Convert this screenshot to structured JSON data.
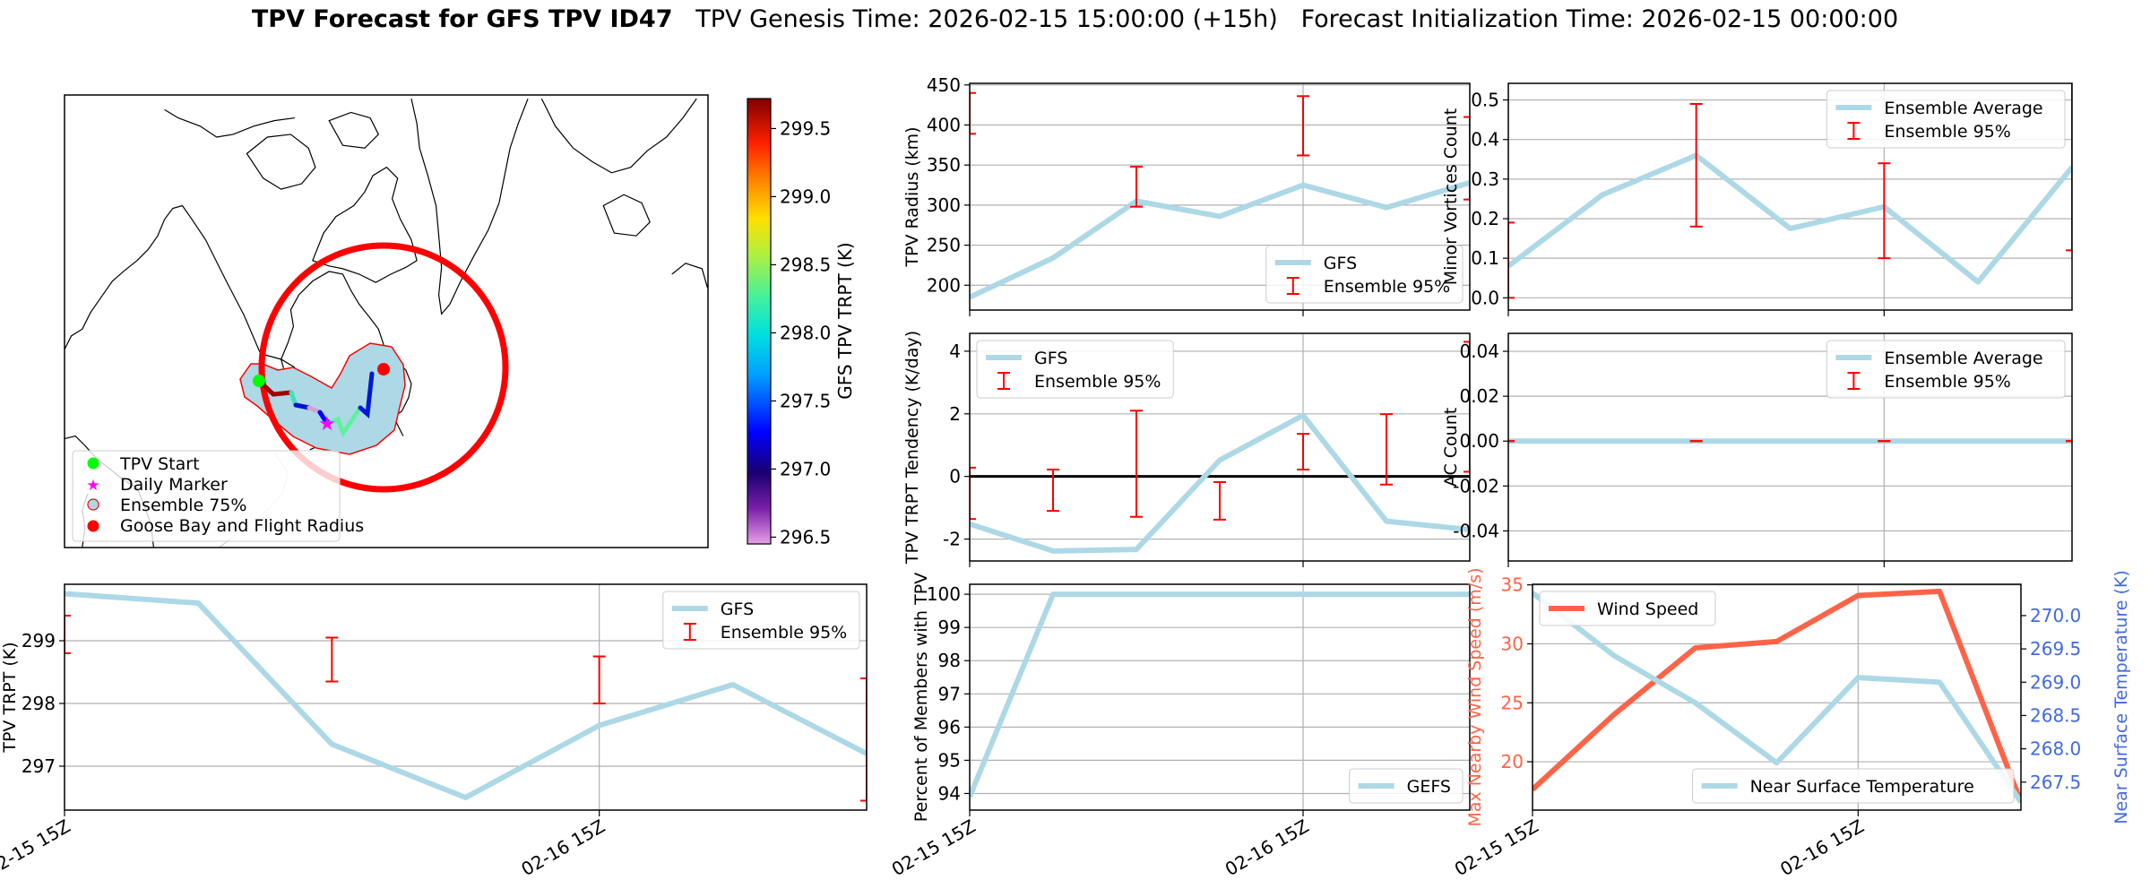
{
  "title": {
    "bold": "TPV Forecast for GFS TPV ID47",
    "genesis": "TPV Genesis Time: 2026-02-15 15:00:00 (+15h)",
    "init": "Forecast Initialization Time: 2026-02-15 00:00:00"
  },
  "colors": {
    "gfs": "#add8e6",
    "error": "#ff0000",
    "wind": "#ff6347",
    "temp_axis": "#4169e1",
    "goose": "#ff0000",
    "start": "#00ff00",
    "marker": "#ff00ff"
  },
  "map": {
    "legend": [
      {
        "label": "TPV Start",
        "icon": "green-dot"
      },
      {
        "label": "Daily Marker",
        "icon": "magenta-star"
      },
      {
        "label": "Ensemble 75%",
        "icon": "lightblue-patch"
      },
      {
        "label": "Goose Bay and Flight Radius",
        "icon": "red-dot"
      }
    ],
    "colorbar": {
      "label": "GFS TPV TRPT (K)",
      "range": [
        296.45,
        299.72
      ],
      "ticks": [
        "296.5",
        "297.0",
        "297.5",
        "298.0",
        "298.5",
        "299.0",
        "299.5"
      ]
    }
  },
  "chart_data": [
    {
      "id": "radius",
      "type": "line",
      "ylabel": "TPV Radius (km)",
      "ylim": [
        169,
        452
      ],
      "yticks": [
        "200",
        "250",
        "300",
        "350",
        "400",
        "450"
      ],
      "xticks": [
        0,
        4
      ],
      "xticklabels": [],
      "series": [
        {
          "name": "GFS",
          "values": [
            185,
            234,
            305,
            286,
            325,
            297,
            328
          ]
        }
      ],
      "errors": [
        {
          "x": 0,
          "low": 389,
          "high": 440
        },
        {
          "x": 2,
          "low": 298,
          "high": 348
        },
        {
          "x": 4,
          "low": 362,
          "high": 436
        },
        {
          "x": 6,
          "low": 307,
          "high": 410
        }
      ],
      "legend": {
        "loc": "lower-right",
        "entries": [
          "GFS",
          "Ensemble 95%"
        ]
      }
    },
    {
      "id": "tendency",
      "type": "line",
      "ylabel": "TPV TRPT Tendency (K/day)",
      "ylim": [
        -2.7,
        4.57
      ],
      "yticks": [
        "-2",
        "0",
        "2",
        "4"
      ],
      "hline": 0,
      "xticks": [
        0,
        4
      ],
      "xticklabels": [],
      "series": [
        {
          "name": "GFS",
          "values": [
            -1.52,
            -2.38,
            -2.33,
            0.52,
            1.95,
            -1.43,
            -1.7
          ]
        }
      ],
      "errors": [
        {
          "x": 0,
          "low": -1.36,
          "high": 0.28
        },
        {
          "x": 1,
          "low": -1.1,
          "high": 0.22
        },
        {
          "x": 2,
          "low": -1.29,
          "high": 2.1
        },
        {
          "x": 3,
          "low": -1.38,
          "high": -0.18
        },
        {
          "x": 4,
          "low": 0.22,
          "high": 1.36
        },
        {
          "x": 5,
          "low": -0.26,
          "high": 1.99
        },
        {
          "x": 6,
          "low": 0.15,
          "high": 4.3
        }
      ],
      "legend": {
        "loc": "upper-left",
        "entries": [
          "GFS",
          "Ensemble 95%"
        ]
      }
    },
    {
      "id": "percent",
      "type": "line",
      "ylabel": "Percent of Members with TPV",
      "ylim": [
        93.5,
        100.3
      ],
      "yticks": [
        "94",
        "95",
        "96",
        "97",
        "98",
        "99",
        "100"
      ],
      "xticks": [
        0,
        4
      ],
      "xticklabels": [
        "02-15 15Z",
        "02-16 15Z"
      ],
      "series": [
        {
          "name": "GEFS",
          "values": [
            93.9,
            100,
            100,
            100,
            100,
            100,
            100
          ]
        }
      ],
      "errors": [],
      "legend": {
        "loc": "lower-right",
        "entries": [
          "GEFS"
        ]
      }
    },
    {
      "id": "minor",
      "type": "line",
      "ylabel": "Minor Vortices Count",
      "ylim": [
        -0.031,
        0.542
      ],
      "yticks": [
        "0.0",
        "0.1",
        "0.2",
        "0.3",
        "0.4",
        "0.5"
      ],
      "xticks": [
        0,
        4
      ],
      "xticklabels": [],
      "series": [
        {
          "name": "Ensemble Average",
          "values": [
            0.08,
            0.26,
            0.36,
            0.175,
            0.23,
            0.04,
            0.33
          ]
        }
      ],
      "errors": [
        {
          "x": 0,
          "low": 0.0,
          "high": 0.19
        },
        {
          "x": 2,
          "low": 0.18,
          "high": 0.49
        },
        {
          "x": 4,
          "low": 0.1,
          "high": 0.34
        },
        {
          "x": 6,
          "low": 0.12,
          "high": 0.56
        }
      ],
      "legend": {
        "loc": "upper-right",
        "entries": [
          "Ensemble Average",
          "Ensemble 95%"
        ]
      }
    },
    {
      "id": "ac",
      "type": "line",
      "ylabel": "AC Count",
      "ylim": [
        -0.0534,
        0.048
      ],
      "yticks": [
        "-0.04",
        "-0.02",
        "0.00",
        "0.02",
        "0.04"
      ],
      "xticks": [
        0,
        4
      ],
      "xticklabels": [],
      "series": [
        {
          "name": "Ensemble Average",
          "values": [
            0,
            0,
            0,
            0,
            0,
            0,
            0
          ]
        }
      ],
      "errors": [
        {
          "x": 0,
          "low": 0,
          "high": 0
        },
        {
          "x": 2,
          "low": 0,
          "high": 0
        },
        {
          "x": 4,
          "low": 0,
          "high": 0
        },
        {
          "x": 6,
          "low": 0,
          "high": 0
        }
      ],
      "legend": {
        "loc": "upper-right",
        "entries": [
          "Ensemble Average",
          "Ensemble 95%"
        ]
      }
    },
    {
      "id": "trpt",
      "type": "line",
      "ylabel": "TPV TRPT (K)",
      "ylim": [
        296.3,
        299.9
      ],
      "yticks": [
        "297",
        "298",
        "299"
      ],
      "xticks": [
        0,
        4
      ],
      "xticklabels": [
        "02-15 15Z",
        "02-16 15Z"
      ],
      "series": [
        {
          "name": "GFS",
          "values": [
            299.75,
            299.6,
            297.35,
            296.5,
            297.65,
            298.3,
            297.2
          ]
        }
      ],
      "errors": [
        {
          "x": 0,
          "low": 298.8,
          "high": 299.4
        },
        {
          "x": 2,
          "low": 298.35,
          "high": 299.05
        },
        {
          "x": 4,
          "low": 298.0,
          "high": 298.75
        },
        {
          "x": 6,
          "low": 296.45,
          "high": 298.4
        }
      ],
      "legend": {
        "loc": "upper-right",
        "entries": [
          "GFS",
          "Ensemble 95%"
        ]
      }
    },
    {
      "id": "wind",
      "type": "line",
      "ylabel": "Max Nearby Wind Speed (m/s)",
      "ylim": [
        15.9,
        35.05
      ],
      "yticks": [
        "20",
        "25",
        "30",
        "35"
      ],
      "y2label": "Near Surface Temperature (K)",
      "y2lim": [
        267.08,
        270.47
      ],
      "y2ticks": [
        "267.5",
        "268.0",
        "268.5",
        "269.0",
        "269.5",
        "270.0"
      ],
      "xticks": [
        0,
        4
      ],
      "xticklabels": [
        "02-15 15Z",
        "02-16 15Z"
      ],
      "series": [
        {
          "name": "Wind Speed",
          "values": [
            17.65,
            24.0,
            29.66,
            30.2,
            34.1,
            34.45,
            16.6
          ],
          "axis": "left"
        },
        {
          "name": "Near Surface Temperature",
          "values": [
            270.34,
            269.4,
            268.69,
            267.79,
            269.07,
            269.0,
            267.2
          ],
          "axis": "right"
        }
      ],
      "errors": [],
      "legend": {
        "loc": "upper-left",
        "entries": [
          "Wind Speed"
        ]
      },
      "legend2": {
        "loc": "lower-right",
        "entries": [
          "Near Surface Temperature"
        ]
      }
    }
  ]
}
